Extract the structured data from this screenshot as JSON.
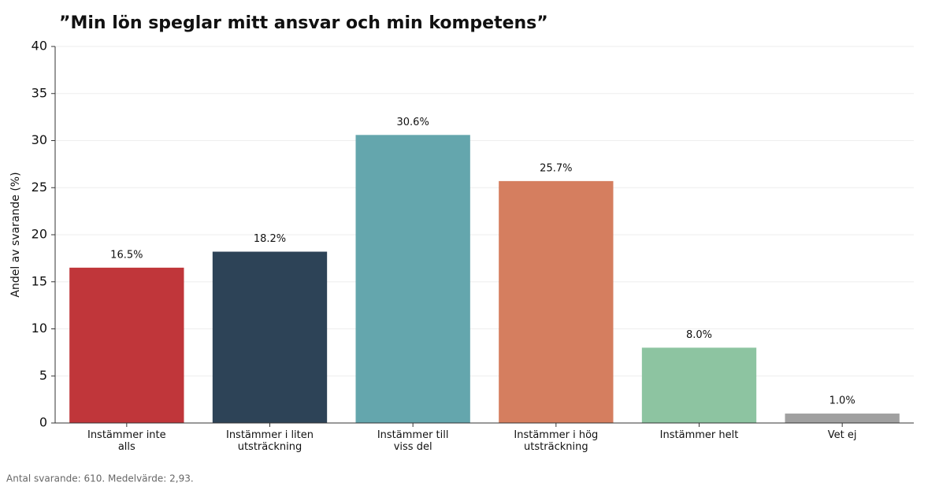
{
  "chart_data": {
    "type": "bar",
    "title": "”Min lön speglar mitt ansvar och min kompetens”",
    "ylabel": "Andel av svarande (%)",
    "footnote": "Antal svarande: 610. Medelvärde: 2,93.",
    "categories": [
      "Instämmer inte\nalls",
      "Instämmer i liten\nutsträckning",
      "Instämmer till\nviss del",
      "Instämmer i hög\nutsträckning",
      "Instämmer helt",
      "Vet ej"
    ],
    "values": [
      16.5,
      18.2,
      30.6,
      25.7,
      8.0,
      1.0
    ],
    "value_labels": [
      "16.5%",
      "18.2%",
      "30.6%",
      "25.7%",
      "8.0%",
      "1.0%"
    ],
    "colors": [
      "#c0363a",
      "#2d4357",
      "#64a6ad",
      "#d57e5f",
      "#8dc4a1",
      "#a0a0a0"
    ],
    "ylim": [
      0,
      40
    ],
    "yticks": [
      0,
      5,
      10,
      15,
      20,
      25,
      30,
      35,
      40
    ],
    "grid": true
  }
}
